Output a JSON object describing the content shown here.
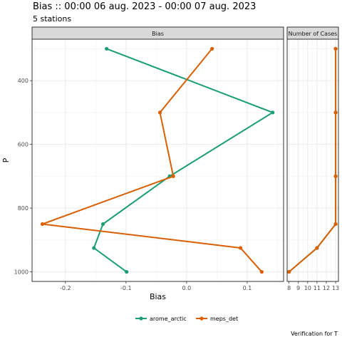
{
  "chart_data": {
    "type": "line",
    "title": "Bias :: 00:00 06 aug. 2023 - 00:00 07 aug. 2023",
    "subtitle": "5 stations",
    "caption": "Verification for T",
    "ylabel": "P",
    "y_reversed": true,
    "panels": [
      {
        "strip": "Bias",
        "xlabel": "Bias",
        "xlim": [
          -0.255,
          0.16
        ],
        "ylim": [
          1030,
          270
        ],
        "x_ticks": [
          -0.2,
          -0.1,
          0.0,
          0.1
        ],
        "x_tick_labels": [
          "-0.2",
          "-0.1",
          "0.0",
          "0.1"
        ],
        "y_ticks": [
          400,
          600,
          800,
          1000
        ],
        "y_tick_labels": [
          "400",
          "600",
          "800",
          "1000"
        ],
        "grid": true,
        "series": [
          {
            "name": "arome_arctic",
            "color": "#1b9e77",
            "points": [
              [
                -0.132,
                300
              ],
              [
                0.142,
                500
              ],
              [
                -0.028,
                700
              ],
              [
                -0.138,
                850
              ],
              [
                -0.153,
                925
              ],
              [
                -0.099,
                1000
              ]
            ]
          },
          {
            "name": "meps_det",
            "color": "#d95f02",
            "points": [
              [
                0.042,
                300
              ],
              [
                -0.044,
                500
              ],
              [
                -0.022,
                700
              ],
              [
                -0.238,
                850
              ],
              [
                0.089,
                925
              ],
              [
                0.124,
                1000
              ]
            ]
          }
        ]
      },
      {
        "strip": "Number of Cases",
        "xlim": [
          7.8,
          13.3
        ],
        "ylim": [
          1030,
          270
        ],
        "x_ticks": [
          8,
          9,
          10,
          11,
          12,
          13
        ],
        "x_tick_labels": [
          "8",
          "9",
          "10",
          "11",
          "12",
          "13"
        ],
        "grid": true,
        "series": [
          {
            "name": "arome_arctic",
            "color": "#1b9e77",
            "points": [
              [
                13,
                300
              ],
              [
                13,
                500
              ],
              [
                13,
                700
              ],
              [
                13,
                850
              ],
              [
                11,
                925
              ],
              [
                8,
                1000
              ]
            ]
          },
          {
            "name": "meps_det",
            "color": "#d95f02",
            "points": [
              [
                13,
                300
              ],
              [
                13,
                500
              ],
              [
                13,
                700
              ],
              [
                13,
                850
              ],
              [
                11,
                925
              ],
              [
                8,
                1000
              ]
            ]
          }
        ]
      }
    ],
    "legend": {
      "placement": "bottom",
      "entries": [
        {
          "name": "arome_arctic",
          "color": "#1b9e77"
        },
        {
          "name": "meps_det",
          "color": "#d95f02"
        }
      ]
    }
  }
}
